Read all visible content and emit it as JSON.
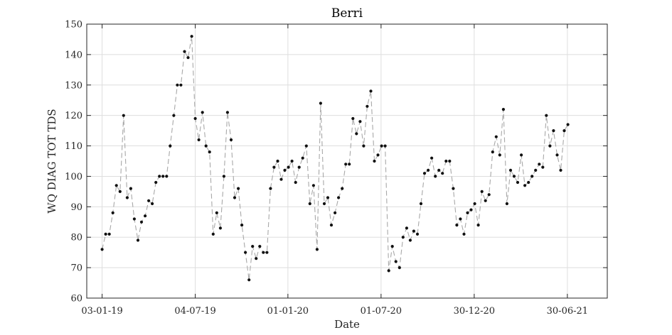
{
  "chart_data": {
    "type": "line",
    "title": "Berri",
    "xlabel": "Date",
    "ylabel": "WQ DIAG TOT TDS",
    "grid": true,
    "x_axis": {
      "ticks": [
        "2019-01-03",
        "2019-07-04",
        "2020-01-01",
        "2020-07-01",
        "2020-12-30",
        "2021-06-30"
      ],
      "tick_labels": [
        "03-01-19",
        "04-07-19",
        "01-01-20",
        "01-07-20",
        "30-12-20",
        "30-06-21"
      ],
      "range": [
        "2018-12-04",
        "2021-09-16"
      ]
    },
    "y_axis": {
      "range": [
        60,
        150
      ],
      "ticks": [
        60,
        70,
        80,
        90,
        100,
        110,
        120,
        130,
        140,
        150
      ]
    },
    "colors": {
      "line": "#a8a8a8",
      "marker": "#111111"
    },
    "series": [
      {
        "x": [
          "2019-01-03",
          "2019-01-10",
          "2019-01-17",
          "2019-01-24",
          "2019-01-31",
          "2019-02-07",
          "2019-02-14",
          "2019-02-21",
          "2019-02-28",
          "2019-03-07",
          "2019-03-14",
          "2019-03-21",
          "2019-03-28",
          "2019-04-04",
          "2019-04-11",
          "2019-04-18",
          "2019-04-25",
          "2019-05-02",
          "2019-05-09",
          "2019-05-16",
          "2019-05-23",
          "2019-05-30",
          "2019-06-06",
          "2019-06-13",
          "2019-06-20",
          "2019-06-27",
          "2019-07-04",
          "2019-07-11",
          "2019-07-18",
          "2019-07-25",
          "2019-08-01",
          "2019-08-08",
          "2019-08-15",
          "2019-08-22",
          "2019-08-29",
          "2019-09-05",
          "2019-09-12",
          "2019-09-19",
          "2019-09-26",
          "2019-10-03",
          "2019-10-10",
          "2019-10-17",
          "2019-10-24",
          "2019-10-31",
          "2019-11-07",
          "2019-11-14",
          "2019-11-21",
          "2019-11-28",
          "2019-12-05",
          "2019-12-12",
          "2019-12-19",
          "2019-12-26",
          "2020-01-02",
          "2020-01-09",
          "2020-01-16",
          "2020-01-23",
          "2020-01-30",
          "2020-02-06",
          "2020-02-13",
          "2020-02-20",
          "2020-02-27",
          "2020-03-05",
          "2020-03-12",
          "2020-03-19",
          "2020-03-26",
          "2020-04-02",
          "2020-04-09",
          "2020-04-16",
          "2020-04-23",
          "2020-04-30",
          "2020-05-07",
          "2020-05-14",
          "2020-05-21",
          "2020-05-28",
          "2020-06-04",
          "2020-06-11",
          "2020-06-18",
          "2020-06-25",
          "2020-07-02",
          "2020-07-09",
          "2020-07-16",
          "2020-07-23",
          "2020-07-30",
          "2020-08-06",
          "2020-08-13",
          "2020-08-20",
          "2020-08-27",
          "2020-09-03",
          "2020-09-10",
          "2020-09-17",
          "2020-09-24",
          "2020-10-01",
          "2020-10-08",
          "2020-10-15",
          "2020-10-22",
          "2020-10-29",
          "2020-11-05",
          "2020-11-12",
          "2020-11-19",
          "2020-11-26",
          "2020-12-03",
          "2020-12-10",
          "2020-12-17",
          "2020-12-24",
          "2020-12-31",
          "2021-01-07",
          "2021-01-14",
          "2021-01-21",
          "2021-01-28",
          "2021-02-04",
          "2021-02-11",
          "2021-02-18",
          "2021-02-25",
          "2021-03-04",
          "2021-03-11",
          "2021-03-18",
          "2021-03-25",
          "2021-04-01",
          "2021-04-08",
          "2021-04-15",
          "2021-04-22",
          "2021-04-29",
          "2021-05-06",
          "2021-05-13",
          "2021-05-20",
          "2021-05-27",
          "2021-06-03",
          "2021-06-10",
          "2021-06-17",
          "2021-06-24",
          "2021-07-01"
        ],
        "values": [
          76,
          81,
          81,
          88,
          97,
          95,
          120,
          93,
          96,
          86,
          79,
          85,
          87,
          92,
          91,
          98,
          100,
          100,
          100,
          110,
          120,
          130,
          130,
          141,
          139,
          146,
          119,
          112,
          121,
          110,
          108,
          81,
          88,
          83,
          100,
          121,
          112,
          93,
          96,
          84,
          75,
          66,
          77,
          73,
          77,
          75,
          75,
          96,
          103,
          105,
          99,
          102,
          103,
          105,
          98,
          103,
          106,
          110,
          91,
          97,
          76,
          124,
          91,
          93,
          84,
          88,
          93,
          96,
          104,
          104,
          119,
          114,
          118,
          110,
          123,
          128,
          105,
          107,
          110,
          110,
          69,
          77,
          72,
          70,
          80,
          83,
          79,
          82,
          81,
          91,
          101,
          102,
          106,
          100,
          102,
          101,
          105,
          105,
          96,
          84,
          86,
          81,
          88,
          89,
          91,
          84,
          95,
          92,
          94,
          108,
          113,
          107,
          122,
          91,
          102,
          100,
          98,
          107,
          97,
          98,
          100,
          102,
          104,
          103,
          120,
          110,
          115,
          107,
          102,
          115,
          117
        ]
      }
    ]
  }
}
